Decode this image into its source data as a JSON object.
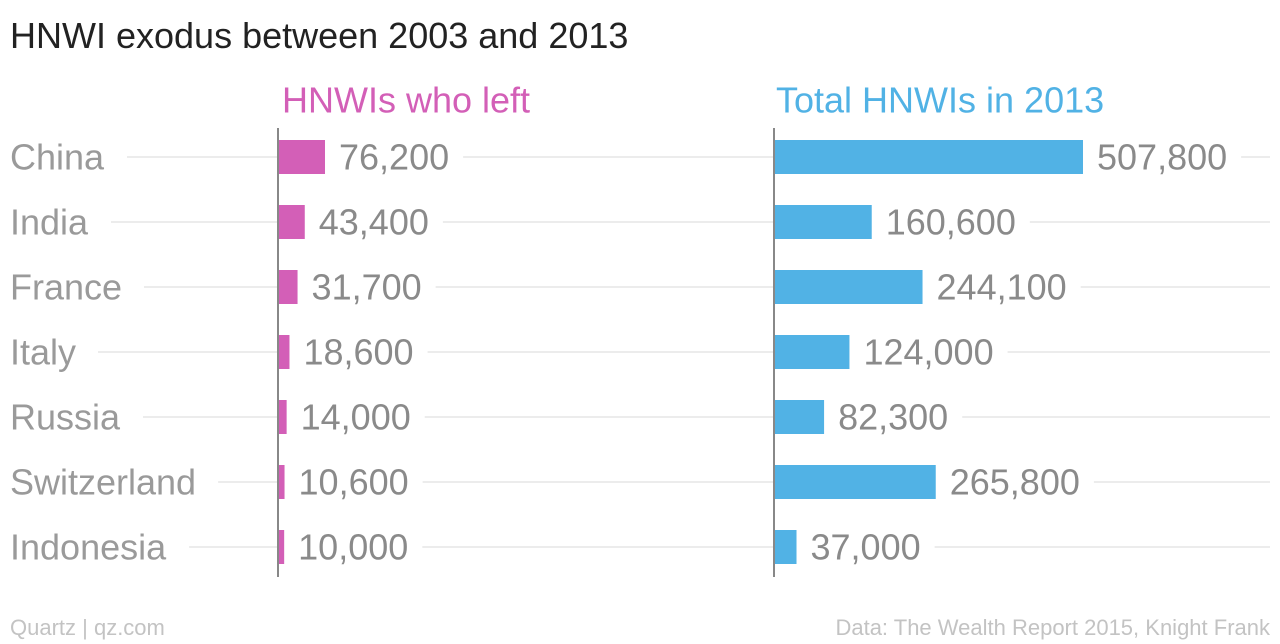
{
  "chart_data": {
    "type": "bar",
    "orientation": "horizontal",
    "title": "HNWI exodus between 2003 and 2013",
    "categories": [
      "China",
      "India",
      "France",
      "Italy",
      "Russia",
      "Switzerland",
      "Indonesia"
    ],
    "series": [
      {
        "name": "HNWIs who left",
        "values": [
          76200,
          43400,
          31700,
          18600,
          14000,
          10600,
          10000
        ],
        "labels": [
          "76,200",
          "43,400",
          "31,700",
          "18,600",
          "14,000",
          "10,600",
          "10,000"
        ],
        "color": "#d35fb7"
      },
      {
        "name": "Total HNWIs in 2013",
        "values": [
          507800,
          160600,
          244100,
          124000,
          82300,
          265800,
          37000
        ],
        "labels": [
          "507,800",
          "160,600",
          "244,100",
          "124,000",
          "82,300",
          "265,800",
          "37,000"
        ],
        "color": "#51b2e5"
      }
    ],
    "grid": true,
    "category_color": "#9a9a9a",
    "value_label_color": "#8a8a8a",
    "axis_color": "#888888",
    "gridline_color": "#ececec"
  },
  "footer": {
    "credit": "Quartz | qz.com",
    "source": "Data: The Wealth Report 2015, Knight Frank"
  }
}
